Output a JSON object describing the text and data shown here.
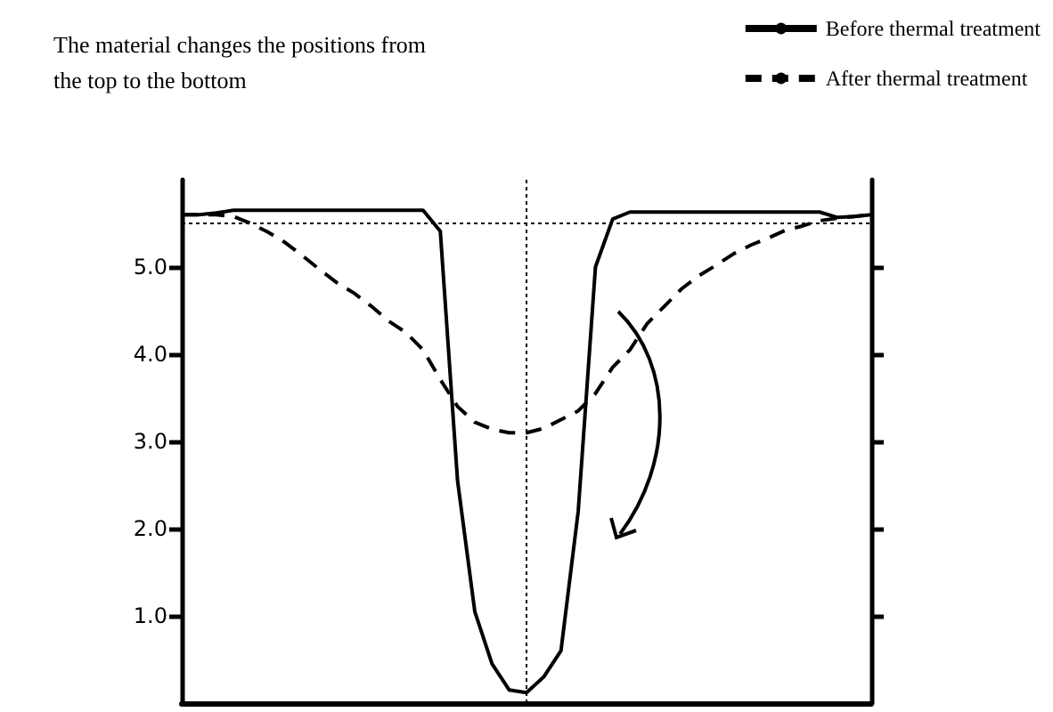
{
  "chart_data": {
    "type": "line",
    "title": "The material changes the positions from the top to the bottom",
    "categories": [
      null,
      null,
      null,
      null,
      null,
      null,
      null,
      null,
      null,
      null,
      null,
      null,
      null,
      null,
      null,
      null,
      null,
      null,
      null,
      null,
      null,
      null,
      null,
      null,
      null,
      null,
      null,
      null,
      null,
      null,
      null,
      null,
      null,
      null,
      null,
      null,
      null,
      null,
      null,
      null,
      null
    ],
    "series": [
      {
        "name": "Before thermal treatment",
        "color": "#000000",
        "line_style": "solid",
        "values": [
          5.6,
          5.6,
          5.62,
          5.65,
          5.65,
          5.65,
          5.65,
          5.65,
          5.65,
          5.65,
          5.65,
          5.65,
          5.65,
          5.65,
          5.65,
          5.41,
          2.55,
          1.05,
          0.45,
          0.15,
          0.12,
          0.3,
          0.6,
          2.2,
          5.0,
          5.55,
          5.63,
          5.63,
          5.63,
          5.63,
          5.63,
          5.63,
          5.63,
          5.63,
          5.63,
          5.63,
          5.63,
          5.63,
          5.57,
          5.58,
          5.6
        ]
      },
      {
        "name": "After thermal treatment",
        "color": "#000000",
        "line_style": "dashed",
        "values": [
          5.6,
          5.6,
          5.6,
          5.58,
          5.5,
          5.4,
          5.28,
          5.13,
          4.97,
          4.82,
          4.7,
          4.55,
          4.38,
          4.25,
          4.05,
          3.71,
          3.4,
          3.22,
          3.14,
          3.1,
          3.1,
          3.15,
          3.25,
          3.35,
          3.55,
          3.85,
          4.05,
          4.35,
          4.55,
          4.75,
          4.9,
          5.02,
          5.15,
          5.25,
          5.33,
          5.42,
          5.47,
          5.53,
          5.56,
          5.58,
          5.6
        ]
      }
    ],
    "ylim": [
      0,
      6
    ],
    "yticks": [
      {
        "value": 1,
        "label": "1.0"
      },
      {
        "value": 2,
        "label": "2.0"
      },
      {
        "value": 3,
        "label": "3.0"
      },
      {
        "value": 4,
        "label": "4.0"
      },
      {
        "value": 5,
        "label": "5.0"
      }
    ],
    "tick_labels": "y",
    "ref_lines": [
      {
        "axis": "y",
        "value": 5.5,
        "line_style": "dotted"
      }
    ],
    "marker": "none",
    "grid": false,
    "legend": "top right"
  }
}
